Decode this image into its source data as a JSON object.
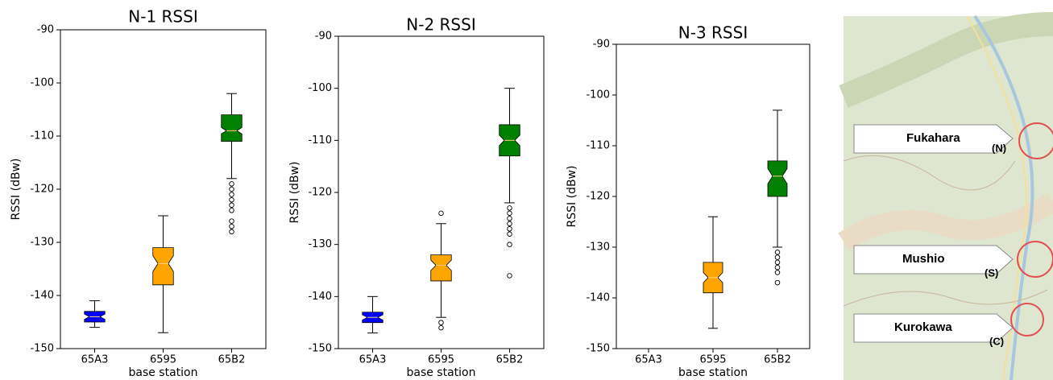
{
  "chart_data": [
    {
      "type": "box",
      "title": "N-1 RSSI",
      "x_label": "base station",
      "y_label": "RSSI (dBw)",
      "categories": [
        "65A3",
        "6595",
        "65B2"
      ],
      "colors": [
        "#0000ff",
        "#ffa500",
        "#008000"
      ],
      "ylim": [
        -150,
        -90
      ],
      "yticks": [
        -150,
        -140,
        -130,
        -120,
        -110,
        -100,
        -90
      ],
      "values": [
        {
          "low": -146,
          "q1": -145,
          "median": -144,
          "q3": -143,
          "high": -141,
          "notch": [
            -144.5,
            -143.5
          ],
          "fliers": []
        },
        {
          "low": -147,
          "q1": -138,
          "median": -134,
          "q3": -131,
          "high": -125,
          "notch": [
            -135.5,
            -132.5
          ],
          "fliers": []
        },
        {
          "low": -118,
          "q1": -111,
          "median": -109,
          "q3": -106,
          "high": -102,
          "notch": [
            -109.6,
            -108.4
          ],
          "fliers": [
            -119,
            -120,
            -121,
            -122,
            -123,
            -124,
            -126,
            -127,
            -128
          ]
        }
      ]
    },
    {
      "type": "box",
      "title": "N-2 RSSI",
      "x_label": "base station",
      "y_label": "RSSI (dBw)",
      "categories": [
        "65A3",
        "6595",
        "65B2"
      ],
      "colors": [
        "#0000ff",
        "#ffa500",
        "#008000"
      ],
      "ylim": [
        -150,
        -90
      ],
      "yticks": [
        -150,
        -140,
        -130,
        -120,
        -110,
        -100,
        -90
      ],
      "values": [
        {
          "low": -147,
          "q1": -145,
          "median": -144,
          "q3": -143,
          "high": -140,
          "notch": [
            -144.5,
            -143.5
          ],
          "fliers": []
        },
        {
          "low": -144,
          "q1": -137,
          "median": -134,
          "q3": -132,
          "high": -126,
          "notch": [
            -135,
            -133
          ],
          "fliers": [
            -124,
            -145,
            -146
          ]
        },
        {
          "low": -122,
          "q1": -113,
          "median": -110,
          "q3": -107,
          "high": -100,
          "notch": [
            -111,
            -109
          ],
          "fliers": [
            -123,
            -124,
            -125,
            -126,
            -127,
            -128,
            -130,
            -136
          ]
        }
      ]
    },
    {
      "type": "box",
      "title": "N-3 RSSI",
      "x_label": "base station",
      "y_label": "RSSI (dBw)",
      "categories": [
        "65A3",
        "6595",
        "65B2"
      ],
      "colors": [
        "#0000ff",
        "#ffa500",
        "#008000"
      ],
      "ylim": [
        -150,
        -90
      ],
      "yticks": [
        -150,
        -140,
        -130,
        -120,
        -110,
        -100,
        -90
      ],
      "values": [
        null,
        {
          "low": -146,
          "q1": -139,
          "median": -136,
          "q3": -133,
          "high": -124,
          "notch": [
            -137,
            -135
          ],
          "fliers": []
        },
        {
          "low": -130,
          "q1": -120,
          "median": -116,
          "q3": -113,
          "high": -103,
          "notch": [
            -117.5,
            -114.5
          ],
          "fliers": [
            -131,
            -132,
            -133,
            -134,
            -135,
            -137
          ]
        }
      ]
    }
  ],
  "map": {
    "labels": [
      {
        "name": "Fukahara",
        "tag": "(N)"
      },
      {
        "name": "Mushio",
        "tag": "(S)"
      },
      {
        "name": "Kurokawa",
        "tag": "(C)"
      }
    ]
  }
}
